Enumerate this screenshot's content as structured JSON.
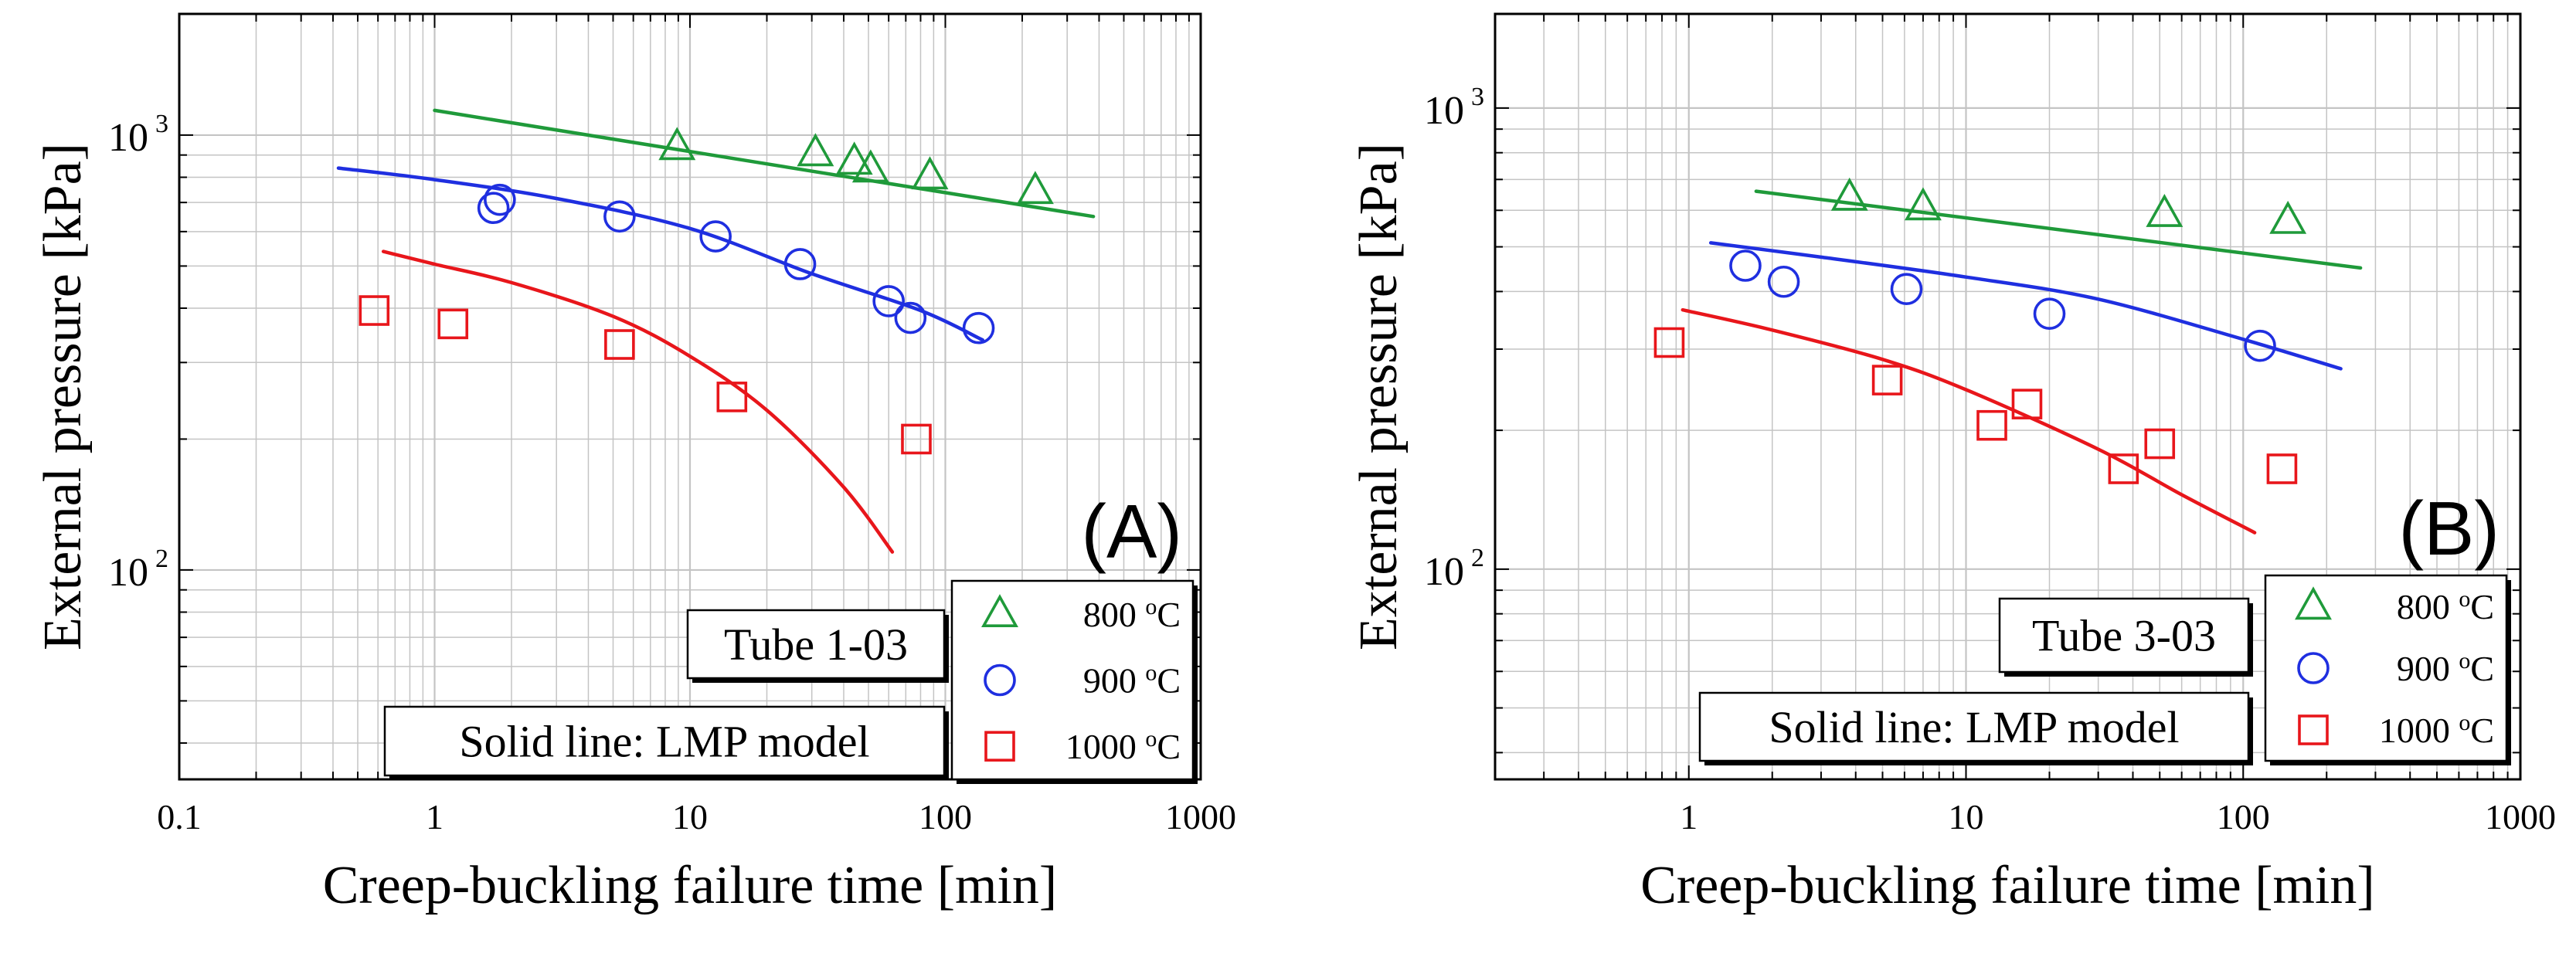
{
  "chart_data": [
    {
      "type": "scatter",
      "panel_label": "(A)",
      "xlabel": "Creep-buckling failure time [min]",
      "ylabel": "External pressure [kPa]",
      "xscale": "log",
      "yscale": "log",
      "xlim": [
        0.1,
        1000
      ],
      "ylim": [
        33,
        1900
      ],
      "xticks": [
        {
          "value": 0.1,
          "label": "0.1"
        },
        {
          "value": 1,
          "label": "1"
        },
        {
          "value": 10,
          "label": "10"
        },
        {
          "value": 100,
          "label": "100"
        },
        {
          "value": 1000,
          "label": "1000"
        }
      ],
      "yticks": [
        {
          "value": 100,
          "base": "10",
          "exp": "2"
        },
        {
          "value": 1000,
          "base": "10",
          "exp": "3"
        }
      ],
      "grid": true,
      "annotations": {
        "tube": "Tube 1-03",
        "note": "Solid line: LMP model"
      },
      "legend_position": "bottom-right",
      "series": [
        {
          "name": "800 °C",
          "label_main": "800 ",
          "label_deg": "o",
          "label_unit": "C",
          "color": "#1f9a3a",
          "marker": "triangle",
          "points": [
            [
              8.9,
              940
            ],
            [
              31,
              910
            ],
            [
              44,
              870
            ],
            [
              51,
              835
            ],
            [
              87,
              805
            ],
            [
              225,
              745
            ]
          ],
          "fit": [
            [
              1,
              1140
            ],
            [
              380,
              650
            ]
          ],
          "fit_shape": "line"
        },
        {
          "name": "900 °C",
          "label_main": "900 ",
          "label_deg": "o",
          "label_unit": "C",
          "color": "#1f2fe0",
          "marker": "circle",
          "points": [
            [
              1.7,
              680
            ],
            [
              1.8,
              710
            ],
            [
              5.3,
              650
            ],
            [
              12.6,
              585
            ],
            [
              27,
              505
            ],
            [
              60,
              415
            ],
            [
              73,
              380
            ],
            [
              135,
              360
            ]
          ],
          "fit": [
            [
              0.42,
              840
            ],
            [
              1,
              790
            ],
            [
              3,
              715
            ],
            [
              10,
              610
            ],
            [
              30,
              480
            ],
            [
              80,
              395
            ],
            [
              140,
              338
            ]
          ],
          "fit_shape": "curve"
        },
        {
          "name": "1000 °C",
          "label_main": "1000 ",
          "label_deg": "o",
          "label_unit": "C",
          "color": "#e8161b",
          "marker": "square",
          "points": [
            [
              0.58,
              395
            ],
            [
              1.18,
              368
            ],
            [
              5.3,
              330
            ],
            [
              14.6,
              250
            ],
            [
              77,
              200
            ]
          ],
          "fit": [
            [
              0.63,
              540
            ],
            [
              1,
              505
            ],
            [
              2,
              458
            ],
            [
              5,
              383
            ],
            [
              10,
              310
            ],
            [
              20,
              233
            ],
            [
              40,
              155
            ],
            [
              62,
              110
            ]
          ],
          "fit_shape": "curve"
        }
      ]
    },
    {
      "type": "scatter",
      "panel_label": "(B)",
      "xlabel": "Creep-buckling failure time [min]",
      "ylabel": "External pressure [kPa]",
      "xscale": "log",
      "yscale": "log",
      "xlim": [
        0.2,
        1000
      ],
      "ylim": [
        35,
        1600
      ],
      "xticks": [
        {
          "value": 1,
          "label": "1"
        },
        {
          "value": 10,
          "label": "10"
        },
        {
          "value": 100,
          "label": "100"
        },
        {
          "value": 1000,
          "label": "1000"
        }
      ],
      "yticks": [
        {
          "value": 100,
          "base": "10",
          "exp": "2"
        },
        {
          "value": 1000,
          "base": "10",
          "exp": "3"
        }
      ],
      "grid": true,
      "annotations": {
        "tube": "Tube 3-03",
        "note": "Solid line: LMP model"
      },
      "legend_position": "bottom-right",
      "series": [
        {
          "name": "800 °C",
          "label_main": "800 ",
          "label_deg": "o",
          "label_unit": "C",
          "color": "#1f9a3a",
          "marker": "triangle",
          "points": [
            [
              3.8,
              640
            ],
            [
              7,
              610
            ],
            [
              52,
              590
            ],
            [
              145,
              570
            ]
          ],
          "fit": [
            [
              1.75,
              660
            ],
            [
              265,
              450
            ]
          ],
          "fit_shape": "line"
        },
        {
          "name": "900 °C",
          "label_main": "900 ",
          "label_deg": "o",
          "label_unit": "C",
          "color": "#1f2fe0",
          "marker": "circle",
          "points": [
            [
              1.6,
              455
            ],
            [
              2.2,
              420
            ],
            [
              6.1,
              405
            ],
            [
              20,
              358
            ],
            [
              115,
              305
            ]
          ],
          "fit": [
            [
              1.2,
              510
            ],
            [
              3,
              475
            ],
            [
              10,
              430
            ],
            [
              30,
              385
            ],
            [
              100,
              315
            ],
            [
              225,
              272
            ]
          ],
          "fit_shape": "curve"
        },
        {
          "name": "1000 °C",
          "label_main": "1000 ",
          "label_deg": "o",
          "label_unit": "C",
          "color": "#e8161b",
          "marker": "square",
          "points": [
            [
              0.85,
              310
            ],
            [
              5.2,
              257
            ],
            [
              12.4,
              205
            ],
            [
              16.6,
              228
            ],
            [
              37,
              165
            ],
            [
              50,
              187
            ],
            [
              138,
              165
            ]
          ],
          "fit": [
            [
              0.95,
              365
            ],
            [
              2,
              330
            ],
            [
              5,
              285
            ],
            [
              10,
              245
            ],
            [
              30,
              182
            ],
            [
              60,
              145
            ],
            [
              110,
              120
            ]
          ],
          "fit_shape": "curve"
        }
      ]
    }
  ]
}
